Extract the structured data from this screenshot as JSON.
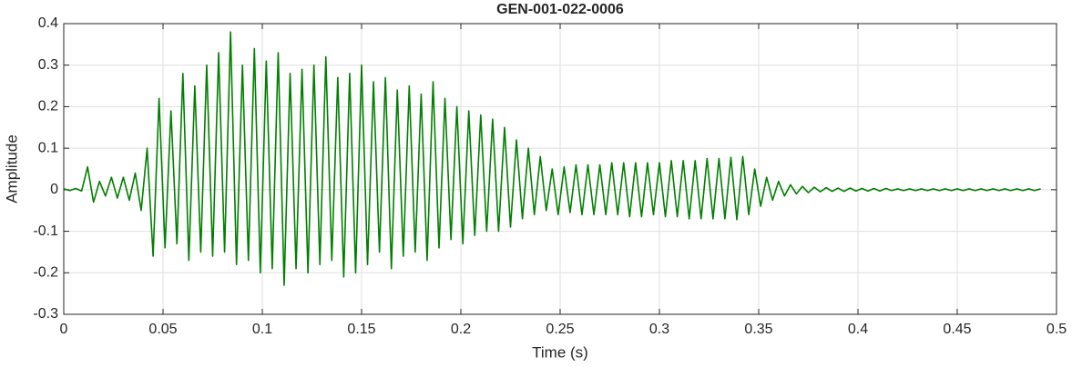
{
  "chart_data": {
    "type": "line",
    "title": "GEN-001-022-0006",
    "xlabel": "Time (s)",
    "ylabel": "Amplitude",
    "color": "#007f00",
    "grid": true,
    "xlim": [
      0,
      0.5
    ],
    "xticks": [
      0,
      0.05,
      0.1,
      0.15,
      0.2,
      0.25,
      0.3,
      0.35,
      0.4,
      0.45,
      0.5
    ],
    "ylim": [
      -0.3,
      0.4
    ],
    "yticks": [
      -0.3,
      -0.2,
      -0.1,
      0,
      0.1,
      0.2,
      0.3,
      0.4
    ],
    "x": [
      0,
      0.003,
      0.006,
      0.009,
      0.012,
      0.015,
      0.018,
      0.021,
      0.024,
      0.027,
      0.03,
      0.033,
      0.036,
      0.039,
      0.042,
      0.045,
      0.048,
      0.051,
      0.054,
      0.057,
      0.06,
      0.063,
      0.066,
      0.069,
      0.072,
      0.075,
      0.078,
      0.081,
      0.084,
      0.087,
      0.09,
      0.093,
      0.096,
      0.099,
      0.102,
      0.105,
      0.108,
      0.111,
      0.114,
      0.117,
      0.12,
      0.123,
      0.126,
      0.129,
      0.132,
      0.135,
      0.138,
      0.141,
      0.144,
      0.147,
      0.15,
      0.153,
      0.156,
      0.159,
      0.162,
      0.165,
      0.168,
      0.171,
      0.174,
      0.177,
      0.18,
      0.183,
      0.186,
      0.189,
      0.192,
      0.195,
      0.198,
      0.201,
      0.204,
      0.207,
      0.21,
      0.213,
      0.216,
      0.219,
      0.222,
      0.225,
      0.228,
      0.231,
      0.234,
      0.237,
      0.24,
      0.243,
      0.246,
      0.249,
      0.252,
      0.255,
      0.258,
      0.261,
      0.264,
      0.267,
      0.27,
      0.273,
      0.276,
      0.279,
      0.282,
      0.285,
      0.288,
      0.291,
      0.294,
      0.297,
      0.3,
      0.303,
      0.306,
      0.309,
      0.312,
      0.315,
      0.318,
      0.321,
      0.324,
      0.327,
      0.33,
      0.333,
      0.336,
      0.339,
      0.342,
      0.345,
      0.348,
      0.351,
      0.354,
      0.357,
      0.36,
      0.363,
      0.366,
      0.369,
      0.372,
      0.375,
      0.378,
      0.381,
      0.384,
      0.387,
      0.39,
      0.393,
      0.396,
      0.399,
      0.402,
      0.405,
      0.408,
      0.411,
      0.414,
      0.417,
      0.42,
      0.423,
      0.426,
      0.429,
      0.432,
      0.435,
      0.438,
      0.441,
      0.444,
      0.447,
      0.45,
      0.453,
      0.456,
      0.459,
      0.462,
      0.465,
      0.468,
      0.471,
      0.474,
      0.477,
      0.48,
      0.483,
      0.486,
      0.489,
      0.492
    ],
    "values": [
      0.002,
      -0.002,
      0.003,
      -0.003,
      0.055,
      -0.03,
      0.02,
      -0.015,
      0.03,
      -0.02,
      0.03,
      -0.025,
      0.04,
      -0.05,
      0.1,
      -0.16,
      0.22,
      -0.14,
      0.19,
      -0.13,
      0.28,
      -0.17,
      0.25,
      -0.15,
      0.3,
      -0.16,
      0.33,
      -0.15,
      0.38,
      -0.18,
      0.3,
      -0.17,
      0.34,
      -0.2,
      0.31,
      -0.19,
      0.33,
      -0.23,
      0.28,
      -0.19,
      0.29,
      -0.2,
      0.3,
      -0.18,
      0.32,
      -0.17,
      0.27,
      -0.21,
      0.28,
      -0.2,
      0.3,
      -0.18,
      0.26,
      -0.15,
      0.27,
      -0.19,
      0.24,
      -0.16,
      0.25,
      -0.15,
      0.23,
      -0.17,
      0.26,
      -0.14,
      0.22,
      -0.12,
      0.2,
      -0.13,
      0.19,
      -0.11,
      0.18,
      -0.1,
      0.17,
      -0.1,
      0.15,
      -0.09,
      0.12,
      -0.07,
      0.1,
      -0.06,
      0.08,
      -0.05,
      0.05,
      -0.06,
      0.055,
      -0.055,
      0.06,
      -0.06,
      0.06,
      -0.06,
      0.06,
      -0.06,
      0.065,
      -0.06,
      0.065,
      -0.065,
      0.065,
      -0.065,
      0.065,
      -0.06,
      0.065,
      -0.065,
      0.07,
      -0.065,
      0.07,
      -0.07,
      0.07,
      -0.07,
      0.075,
      -0.07,
      0.075,
      -0.07,
      0.078,
      -0.072,
      0.08,
      -0.06,
      0.05,
      -0.04,
      0.03,
      -0.025,
      0.02,
      -0.015,
      0.012,
      -0.01,
      0.008,
      -0.007,
      0.006,
      -0.005,
      0.005,
      -0.004,
      0.004,
      -0.004,
      0.004,
      -0.003,
      0.003,
      -0.003,
      0.003,
      -0.003,
      0.003,
      -0.002,
      0.002,
      -0.002,
      0.002,
      -0.002,
      0.002,
      -0.002,
      0.002,
      -0.002,
      0.002,
      -0.002,
      0.002,
      -0.002,
      0.002,
      -0.002,
      0.002,
      -0.002,
      0.002,
      -0.002,
      0.002,
      -0.002,
      0.002,
      -0.002,
      0.002,
      -0.002,
      0.002
    ]
  }
}
